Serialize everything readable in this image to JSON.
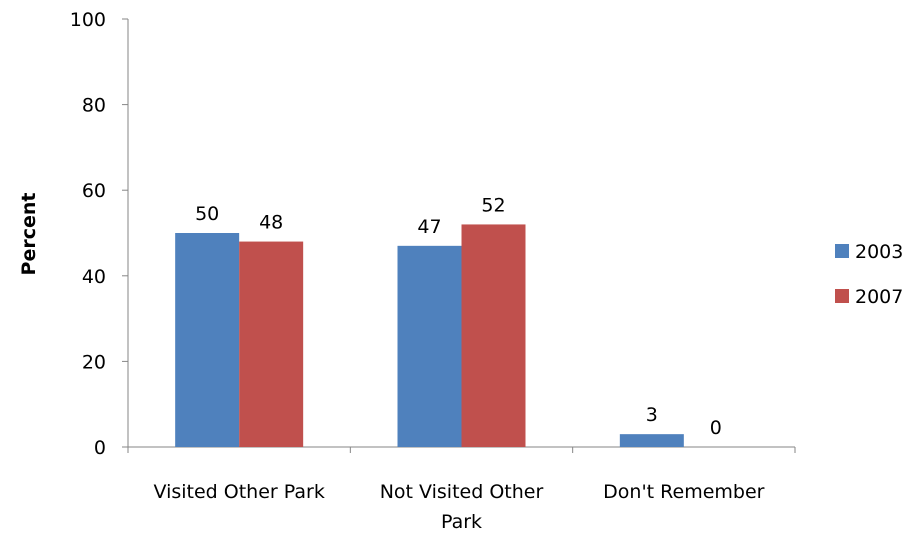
{
  "chart_data": {
    "type": "bar",
    "title": "",
    "xlabel": "",
    "ylabel": "Percent",
    "ylim": [
      0,
      100
    ],
    "yticks": [
      0,
      20,
      40,
      60,
      80,
      100
    ],
    "grid": false,
    "legend_position": "right",
    "categories": [
      "Visited Other Park",
      "Not Visited Other Park",
      "Don't Remember"
    ],
    "series": [
      {
        "name": "2003",
        "color": "#4F81BD",
        "values": [
          50,
          47,
          3
        ]
      },
      {
        "name": "2007",
        "color": "#C0504D",
        "values": [
          48,
          52,
          0
        ]
      }
    ]
  }
}
